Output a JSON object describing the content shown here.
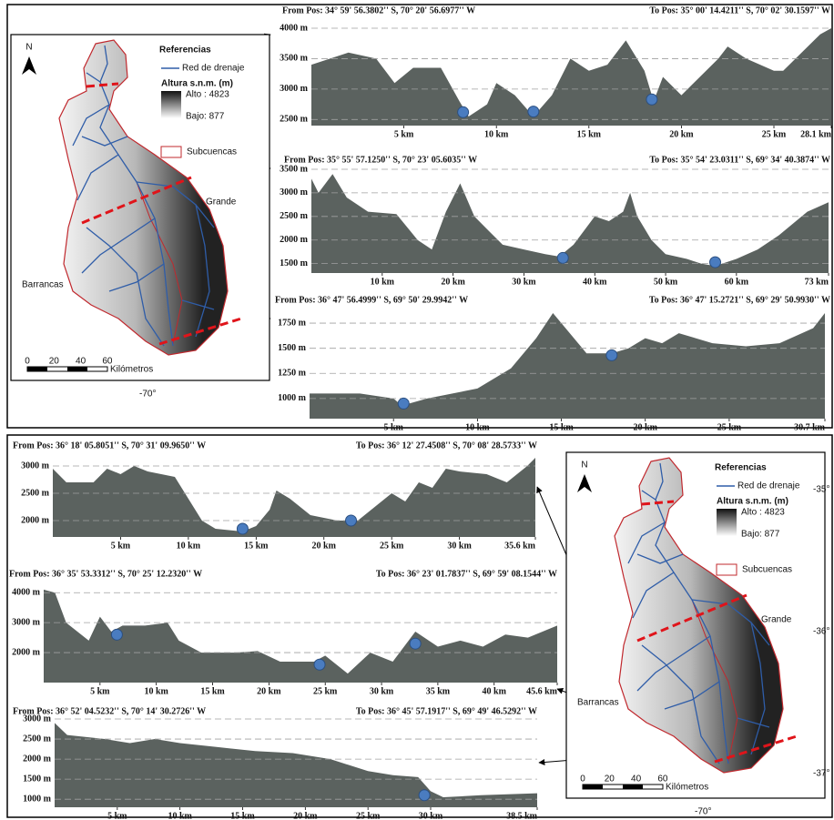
{
  "chart_data": [
    {
      "type": "area",
      "from_label": "From Pos: 34° 59' 56.3802'' S, 70° 20' 56.6977'' W",
      "to_label": "To Pos: 35° 00' 14.4211'' S, 70° 02' 30.1597'' W",
      "color": "#5b625f",
      "x": [
        0,
        2,
        3.5,
        4.5,
        5.5,
        7,
        8,
        8.5,
        9.5,
        10,
        11,
        12,
        13,
        14,
        15,
        16,
        17,
        18,
        18.5,
        19,
        20,
        21,
        22,
        22.5,
        23.5,
        25,
        25.5,
        26.5,
        27.5,
        28.1
      ],
      "values": [
        3400,
        3600,
        3500,
        3100,
        3350,
        3350,
        2800,
        2550,
        2750,
        3100,
        2900,
        2550,
        2900,
        3500,
        3300,
        3400,
        3800,
        3300,
        2800,
        3200,
        2900,
        3200,
        3500,
        3700,
        3500,
        3300,
        3300,
        3600,
        3900,
        4000
      ],
      "markers": {
        "x": [
          8.2,
          12,
          18.4
        ],
        "y": [
          2620,
          2630,
          2830
        ]
      },
      "xlim": [
        0,
        28.1
      ],
      "ylim": [
        2400,
        4000
      ],
      "xticks": [
        {
          "value": 5,
          "label": "5 km"
        },
        {
          "value": 10,
          "label": "10 km"
        },
        {
          "value": 15,
          "label": "15 km"
        },
        {
          "value": 20,
          "label": "20 km"
        },
        {
          "value": 25,
          "label": "25 km"
        },
        {
          "value": 28.1,
          "label": "28.1 km"
        }
      ],
      "yticks": [
        {
          "value": 2500,
          "label": "2500 m"
        },
        {
          "value": 3000,
          "label": "3000 m"
        },
        {
          "value": 3500,
          "label": "3500 m"
        },
        {
          "value": 4000,
          "label": "4000 m"
        }
      ]
    },
    {
      "type": "area",
      "from_label": "From Pos: 35° 55' 57.1250'' S, 70° 23' 05.6035'' W",
      "to_label": "To Pos: 35° 54' 23.0311'' S, 69° 34' 40.3874'' W",
      "color": "#5b625f",
      "x": [
        0,
        1,
        3,
        5,
        8,
        12,
        15,
        17,
        19,
        21,
        23,
        25,
        27,
        30,
        33,
        35,
        37,
        40,
        42,
        44,
        45,
        46,
        48,
        50,
        53,
        55,
        57,
        60,
        63,
        66,
        70,
        73
      ],
      "values": [
        3300,
        3000,
        3400,
        2900,
        2600,
        2550,
        2000,
        1800,
        2600,
        3200,
        2500,
        2200,
        1900,
        1800,
        1700,
        1650,
        1900,
        2500,
        2400,
        2600,
        3000,
        2500,
        2000,
        1700,
        1600,
        1500,
        1450,
        1600,
        1800,
        2100,
        2600,
        2800
      ],
      "markers": {
        "x": [
          35.5,
          57
        ],
        "y": [
          1620,
          1530
        ]
      },
      "xlim": [
        0,
        73
      ],
      "ylim": [
        1300,
        3500
      ],
      "xticks": [
        {
          "value": 10,
          "label": "10 km"
        },
        {
          "value": 20,
          "label": "20 km"
        },
        {
          "value": 30,
          "label": "30 km"
        },
        {
          "value": 40,
          "label": "40 km"
        },
        {
          "value": 50,
          "label": "50 km"
        },
        {
          "value": 60,
          "label": "60 km"
        },
        {
          "value": 73,
          "label": "73 km"
        }
      ],
      "yticks": [
        {
          "value": 1500,
          "label": "1500 m"
        },
        {
          "value": 2000,
          "label": "2000 m"
        },
        {
          "value": 2500,
          "label": "2500 m"
        },
        {
          "value": 3000,
          "label": "3000 m"
        },
        {
          "value": 3500,
          "label": "3500 m"
        }
      ]
    },
    {
      "type": "area",
      "from_label": "From Pos: 36° 47' 56.4999'' S, 69° 50' 29.9942'' W",
      "to_label": "To Pos: 36° 47' 15.2721'' S, 69° 29' 50.9930'' W",
      "color": "#5b625f",
      "x": [
        0,
        3,
        5,
        5.5,
        7,
        10,
        12,
        13.5,
        14.5,
        15.5,
        16.5,
        18,
        19,
        20,
        21,
        22,
        24,
        26,
        28,
        30,
        30.7
      ],
      "values": [
        1050,
        1050,
        1000,
        930,
        1000,
        1100,
        1300,
        1600,
        1850,
        1650,
        1450,
        1450,
        1500,
        1600,
        1550,
        1650,
        1550,
        1520,
        1550,
        1700,
        1850
      ],
      "markers": {
        "x": [
          5.6,
          18
        ],
        "y": [
          950,
          1430
        ]
      },
      "xlim": [
        0,
        30.7
      ],
      "ylim": [
        800,
        1850
      ],
      "xticks": [
        {
          "value": 5,
          "label": "5 km"
        },
        {
          "value": 10,
          "label": "10 km"
        },
        {
          "value": 15,
          "label": "15 km"
        },
        {
          "value": 20,
          "label": "20 km"
        },
        {
          "value": 25,
          "label": "25 km"
        },
        {
          "value": 30.7,
          "label": "30.7 km"
        }
      ],
      "yticks": [
        {
          "value": 1000,
          "label": "1000 m"
        },
        {
          "value": 1250,
          "label": "1250 m"
        },
        {
          "value": 1500,
          "label": "1500 m"
        },
        {
          "value": 1750,
          "label": "1750 m"
        }
      ]
    },
    {
      "type": "area",
      "from_label": "From Pos: 36° 18' 05.8051'' S, 70° 31' 09.9650'' W",
      "to_label": "To Pos: 36° 12' 27.4508'' S, 70° 08' 28.5733'' W",
      "color": "#5b625f",
      "x": [
        0,
        1,
        3,
        4,
        5,
        6,
        7,
        9,
        10,
        11,
        12,
        14,
        15,
        16,
        16.5,
        17.5,
        19,
        21,
        22.5,
        24,
        25,
        26,
        27,
        28,
        29,
        30,
        32,
        33.5,
        35,
        35.6
      ],
      "values": [
        2950,
        2700,
        2700,
        2950,
        2850,
        3000,
        2900,
        2800,
        2400,
        2000,
        1850,
        1800,
        1900,
        2200,
        2550,
        2400,
        2100,
        2000,
        2000,
        2300,
        2500,
        2350,
        2700,
        2600,
        2950,
        2900,
        2850,
        2700,
        3000,
        3150
      ],
      "markers": {
        "x": [
          14,
          22
        ],
        "y": [
          1850,
          2000
        ]
      },
      "xlim": [
        0,
        35.6
      ],
      "ylim": [
        1700,
        3150
      ],
      "xticks": [
        {
          "value": 5,
          "label": "5 km"
        },
        {
          "value": 10,
          "label": "10 km"
        },
        {
          "value": 15,
          "label": "15 km"
        },
        {
          "value": 20,
          "label": "20 km"
        },
        {
          "value": 25,
          "label": "25 km"
        },
        {
          "value": 30,
          "label": "30 km"
        },
        {
          "value": 35.6,
          "label": "35.6 km"
        }
      ],
      "yticks": [
        {
          "value": 2000,
          "label": "2000 m"
        },
        {
          "value": 2500,
          "label": "2500 m"
        },
        {
          "value": 3000,
          "label": "3000 m"
        }
      ]
    },
    {
      "type": "area",
      "from_label": "From Pos: 36° 35' 53.3312'' S, 70° 25' 12.2320'' W",
      "to_label": "To Pos: 36° 23' 01.7837'' S, 69° 59' 08.1544'' W",
      "color": "#5b625f",
      "x": [
        0,
        1,
        2,
        4,
        5,
        6,
        7,
        9,
        11,
        12,
        14,
        17,
        19,
        21,
        24,
        25,
        27,
        29,
        31,
        33,
        35,
        37,
        39,
        41,
        43,
        45.6
      ],
      "values": [
        4100,
        4000,
        3000,
        2400,
        3200,
        2700,
        2900,
        2900,
        3000,
        2400,
        2000,
        2000,
        2050,
        1700,
        1700,
        1900,
        1300,
        2000,
        1700,
        2700,
        2200,
        2400,
        2200,
        2600,
        2500,
        2900
      ],
      "markers": {
        "x": [
          6.5,
          24.5,
          33
        ],
        "y": [
          2600,
          1600,
          2300
        ]
      },
      "xlim": [
        0,
        45.6
      ],
      "ylim": [
        1000,
        4250
      ],
      "xticks": [
        {
          "value": 5,
          "label": "5 km"
        },
        {
          "value": 10,
          "label": "10 km"
        },
        {
          "value": 15,
          "label": "15 km"
        },
        {
          "value": 20,
          "label": "20 km"
        },
        {
          "value": 25,
          "label": "25 km"
        },
        {
          "value": 30,
          "label": "30 km"
        },
        {
          "value": 35,
          "label": "35 km"
        },
        {
          "value": 40,
          "label": "40 km"
        },
        {
          "value": 45.6,
          "label": "45.6 km"
        }
      ],
      "yticks": [
        {
          "value": 2000,
          "label": "2000 m"
        },
        {
          "value": 3000,
          "label": "3000 m"
        },
        {
          "value": 4000,
          "label": "4000 m"
        }
      ]
    },
    {
      "type": "area",
      "from_label": "From Pos: 36° 52' 04.5232'' S, 70° 14' 30.2726'' W",
      "to_label": "To Pos: 36° 45' 57.1917'' S, 69° 49' 46.5292'' W",
      "color": "#5b625f",
      "x": [
        0,
        1,
        4,
        6,
        8,
        10,
        13,
        16,
        19,
        22,
        25,
        27,
        29,
        30,
        31,
        34,
        38.5
      ],
      "values": [
        2900,
        2600,
        2500,
        2400,
        2500,
        2400,
        2300,
        2200,
        2150,
        2000,
        1700,
        1600,
        1550,
        1200,
        1050,
        1100,
        1150
      ],
      "markers": {
        "x": [
          29.5
        ],
        "y": [
          1100
        ]
      },
      "xlim": [
        0,
        38.5
      ],
      "ylim": [
        800,
        3000
      ],
      "xticks": [
        {
          "value": 5,
          "label": "5 km"
        },
        {
          "value": 10,
          "label": "10 km"
        },
        {
          "value": 15,
          "label": "15 km"
        },
        {
          "value": 20,
          "label": "20 km"
        },
        {
          "value": 25,
          "label": "25 km"
        },
        {
          "value": 30,
          "label": "30 km"
        },
        {
          "value": 38.5,
          "label": "38.5 km"
        }
      ],
      "yticks": [
        {
          "value": 1000,
          "label": "1000 m"
        },
        {
          "value": 1500,
          "label": "1500 m"
        },
        {
          "value": 2000,
          "label": "2000 m"
        },
        {
          "value": 2500,
          "label": "2500 m"
        },
        {
          "value": 3000,
          "label": "3000 m"
        }
      ]
    }
  ],
  "maps": [
    {
      "north": "N",
      "legend_title": "Referencias",
      "drainage": "Red de drenaje",
      "altitude_title": "Altura s.n.m. (m)",
      "high": "Alto : 4823",
      "low": "Bajo: 877",
      "subbasins": "Subcuencas",
      "basin_east": "Grande",
      "basin_west": "Barrancas",
      "scale_labels": [
        0,
        20,
        40,
        60
      ],
      "scale_unit": "Kilómetros",
      "longitude": "-70°"
    },
    {
      "north": "N",
      "legend_title": "Referencias",
      "drainage": "Red de drenaje",
      "altitude_title": "Altura s.n.m. (m)",
      "high": "Alto : 4823",
      "low": "Bajo: 877",
      "subbasins": "Subcuencas",
      "basin_east": "Grande",
      "basin_west": "Barrancas",
      "scale_labels": [
        0,
        20,
        40,
        60
      ],
      "scale_unit": "Kilómetros",
      "longitude": "-70°",
      "latitudes": [
        "-35°",
        "-36°",
        "-37°"
      ]
    }
  ]
}
